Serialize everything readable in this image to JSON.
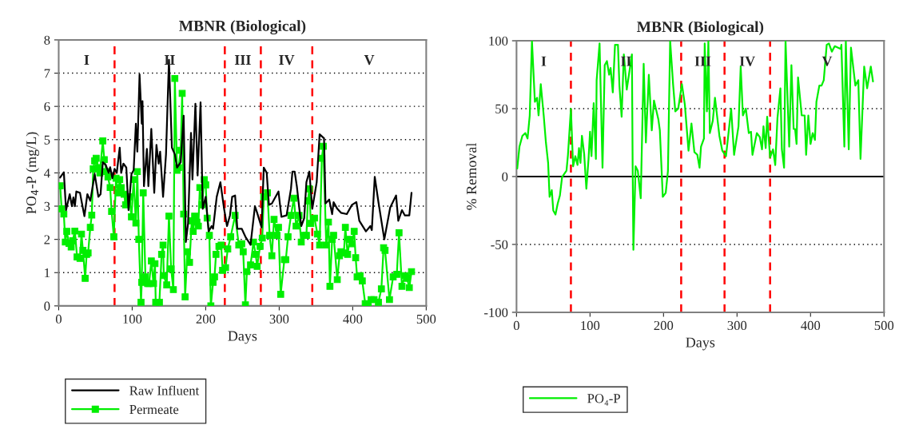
{
  "chart_data": [
    {
      "type": "line",
      "title": "MBNR (Biological)",
      "xlabel": "Days",
      "ylabel": "PO$_{4}$-P (mg/L)",
      "xlim": [
        0,
        500
      ],
      "xticks": [
        0,
        100,
        200,
        300,
        400,
        500
      ],
      "ylim": [
        0,
        8
      ],
      "yticks": [
        0,
        1,
        2,
        3,
        4,
        5,
        6,
        7,
        8
      ],
      "grid": "y",
      "legend": "bottom",
      "series": [
        {
          "name": "Raw Influent",
          "color": "#000000",
          "marker": "none",
          "line_style": "solid",
          "x": [
            2,
            7,
            10,
            15,
            18,
            20,
            22,
            24,
            29,
            31,
            35,
            39,
            43,
            49,
            54,
            57,
            60,
            64,
            68,
            70,
            73,
            76,
            79,
            83,
            85,
            88,
            92,
            95,
            99,
            102,
            105,
            107,
            110,
            113,
            114,
            116,
            120,
            122,
            126,
            130,
            133,
            136,
            138,
            142,
            146,
            150,
            154,
            158,
            161,
            166,
            170,
            173,
            176,
            180,
            182,
            186,
            189,
            193,
            196,
            200,
            204,
            208,
            210,
            215,
            220,
            225,
            229,
            233,
            236,
            240,
            243,
            249,
            254,
            261,
            267,
            270,
            276,
            279,
            283,
            286,
            290,
            299,
            303,
            310,
            316,
            318,
            321,
            324,
            330,
            334,
            337,
            341,
            345,
            351,
            355,
            361,
            363,
            368,
            372,
            374,
            379,
            384,
            392,
            399,
            405,
            409,
            418,
            424,
            426,
            430,
            435,
            443,
            451,
            459,
            462,
            467,
            471,
            477,
            480
          ],
          "values": [
            3.86,
            4.02,
            2.88,
            3.36,
            3.0,
            3.26,
            3.0,
            3.44,
            3.4,
            3.16,
            2.7,
            3.36,
            3.16,
            3.96,
            3.28,
            3.36,
            4.32,
            4.24,
            4.0,
            4.17,
            3.84,
            4.12,
            4.0,
            4.76,
            4.0,
            4.28,
            4.16,
            2.88,
            3.96,
            4.08,
            5.48,
            4.64,
            6.96,
            5.48,
            6.16,
            3.6,
            4.72,
            3.6,
            5.32,
            3.4,
            4.84,
            4.28,
            4.64,
            3.28,
            4.56,
            7.4,
            4.76,
            4.56,
            4.16,
            4.32,
            5.72,
            1.92,
            2.48,
            5.2,
            3.8,
            6.08,
            3.92,
            6.12,
            2.92,
            3.28,
            2.24,
            2.4,
            2.32,
            3.28,
            3.72,
            2.92,
            2.4,
            2.72,
            3.28,
            3.32,
            2.32,
            2.32,
            2.08,
            1.84,
            3.0,
            2.8,
            2.36,
            4.16,
            4.0,
            3.04,
            3.08,
            3.44,
            2.68,
            2.72,
            3.52,
            4.04,
            4.04,
            3.6,
            2.4,
            2.64,
            3.72,
            4.04,
            2.92,
            3.72,
            5.16,
            5.04,
            3.08,
            3.2,
            2.76,
            3.12,
            2.92,
            2.8,
            2.76,
            3.04,
            3.12,
            2.56,
            2.24,
            2.4,
            2.28,
            3.88,
            3.12,
            2.0,
            2.96,
            3.32,
            2.56,
            2.88,
            2.72,
            2.72,
            3.4
          ]
        },
        {
          "name": "Permeate",
          "color": "#00ee00",
          "marker": "square",
          "line_style": "solid",
          "x": [
            2,
            4,
            7,
            9,
            11,
            14,
            17,
            19,
            22,
            25,
            29,
            31,
            33,
            36,
            38,
            40,
            43,
            45,
            47,
            49,
            51,
            54,
            56,
            60,
            62,
            65,
            67,
            70,
            72,
            75,
            78,
            81,
            83,
            85,
            89,
            91,
            94,
            96,
            99,
            102,
            105,
            107,
            109,
            112,
            113,
            115,
            118,
            121,
            123,
            126,
            129,
            131,
            132,
            137,
            140,
            142,
            143,
            147,
            150,
            153,
            156,
            158,
            161,
            163,
            166,
            168,
            170,
            172,
            175,
            178,
            181,
            183,
            185,
            188,
            190,
            192,
            195,
            198,
            200,
            202,
            205,
            207,
            210,
            212,
            214,
            218,
            221,
            223,
            227,
            230,
            234,
            240,
            245,
            249,
            251,
            254,
            256,
            261,
            265,
            268,
            270,
            274,
            277,
            279,
            284,
            287,
            290,
            293,
            297,
            299,
            302,
            307,
            309,
            312,
            316,
            320,
            323,
            327,
            330,
            334,
            337,
            339,
            341,
            343,
            348,
            352,
            355,
            358,
            360,
            364,
            367,
            369,
            372,
            374,
            379,
            382,
            384,
            388,
            390,
            393,
            396,
            399,
            402,
            404,
            406,
            410,
            413,
            417,
            421,
            425,
            429,
            435,
            439,
            442,
            444,
            450,
            455,
            460,
            463,
            467,
            471,
            474,
            477,
            480
          ],
          "values": [
            3.61,
            2.92,
            2.76,
            1.92,
            2.24,
            1.88,
            1.77,
            1.96,
            2.25,
            1.47,
            1.43,
            2.16,
            1.67,
            0.83,
            1.55,
            1.59,
            2.36,
            2.73,
            4.12,
            4.36,
            4.44,
            4.16,
            4.0,
            4.96,
            4.4,
            4.04,
            3.88,
            3.56,
            2.84,
            2.08,
            3.84,
            3.4,
            3.8,
            3.56,
            3.36,
            3.04,
            3.16,
            3.28,
            2.68,
            3.8,
            2.49,
            4.04,
            2.0,
            0.11,
            0.71,
            3.4,
            0.87,
            0.67,
            0.67,
            1.35,
            0.67,
            1.27,
            0.11,
            0.11,
            1.55,
            1.83,
            0.91,
            0.63,
            2.7,
            1.11,
            0.49,
            6.84,
            4.08,
            4.16,
            4.68,
            6.39,
            2.76,
            0.27,
            1.63,
            1.31,
            2.56,
            2.24,
            2.7,
            2.52,
            2.4,
            3.56,
            3.04,
            3.8,
            3.64,
            2.64,
            2.12,
            0.0,
            0.71,
            0.87,
            1.55,
            1.79,
            1.83,
            1.07,
            1.15,
            1.71,
            2.08,
            2.72,
            1.83,
            1.87,
            1.63,
            0.03,
            1.03,
            1.23,
            1.92,
            1.55,
            1.19,
            1.79,
            2.04,
            3.28,
            3.4,
            2.12,
            1.51,
            2.6,
            2.12,
            2.36,
            0.35,
            1.39,
            1.39,
            2.08,
            2.72,
            3.24,
            2.4,
            2.72,
            1.92,
            2.12,
            2.12,
            3.16,
            3.52,
            2.48,
            2.64,
            2.16,
            1.83,
            4.44,
            4.8,
            1.83,
            2.52,
            0.59,
            2.0,
            2.12,
            0.79,
            1.51,
            1.63,
            1.59,
            2.36,
            1.55,
            2.0,
            1.87,
            2.24,
            1.45,
            0.87,
            0.91,
            0.75,
            0.07,
            0.03,
            0.19,
            0.19,
            0.11,
            0.51,
            1.75,
            1.67,
            0.19,
            0.87,
            0.95,
            2.2,
            0.59,
            0.91,
            0.83,
            0.55,
            1.03
          ]
        }
      ],
      "ref_lines": [
        {
          "axis": "x",
          "value": 76,
          "color": "#ff0000",
          "line_style": "dashed"
        },
        {
          "axis": "x",
          "value": 226,
          "color": "#ff0000",
          "line_style": "dashed"
        },
        {
          "axis": "x",
          "value": 275,
          "color": "#ff0000",
          "line_style": "dashed"
        },
        {
          "axis": "x",
          "value": 345,
          "color": "#ff0000",
          "line_style": "dashed"
        }
      ],
      "annotations": [
        "I",
        "II",
        "III",
        "IV",
        "V"
      ]
    },
    {
      "type": "line",
      "title": "MBNR (Biological)",
      "xlabel": "Days",
      "ylabel": "% Removal",
      "xlim": [
        0,
        500
      ],
      "xticks": [
        0,
        100,
        200,
        300,
        400,
        500
      ],
      "ylim": [
        -100,
        100
      ],
      "yticks": [
        -100,
        -50,
        0,
        50,
        100
      ],
      "grid": "y",
      "legend": "bottom",
      "series": [
        {
          "name": "PO₄-P",
          "color": "#00ee00",
          "marker": "none",
          "line_style": "solid",
          "x": [
            1,
            4,
            8,
            12,
            15,
            18,
            21,
            25,
            28,
            30,
            33,
            37,
            40,
            43,
            45,
            48,
            50,
            53,
            56,
            59,
            62,
            68,
            70,
            74,
            77,
            80,
            83,
            85,
            87,
            89,
            92,
            95,
            98,
            100,
            102,
            105,
            108,
            109,
            113,
            117,
            120,
            123,
            126,
            128,
            131,
            134,
            138,
            140,
            143,
            146,
            150,
            157,
            158,
            159,
            162,
            165,
            169,
            173,
            176,
            180,
            184,
            187,
            193,
            195,
            199,
            203,
            206,
            209,
            213,
            216,
            220,
            225,
            229,
            234,
            238,
            242,
            246,
            249,
            251,
            255,
            256,
            259,
            261,
            263,
            267,
            270,
            276,
            280,
            285,
            292,
            296,
            302,
            305,
            308,
            312,
            316,
            319,
            321,
            327,
            331,
            334,
            336,
            339,
            341,
            345,
            349,
            352,
            355,
            359,
            361,
            364,
            366,
            371,
            374,
            377,
            379,
            381,
            383,
            388,
            392,
            394,
            397,
            400,
            403,
            406,
            408,
            412,
            415,
            418,
            422,
            425,
            429,
            433,
            437,
            441,
            442,
            446,
            448,
            452,
            455,
            461,
            465,
            468,
            473,
            477,
            482,
            485
          ],
          "values": [
            6,
            22,
            30,
            32,
            28,
            45,
            100,
            55,
            58,
            45,
            68,
            45,
            25,
            10,
            -15,
            -10,
            -25,
            -28,
            -20,
            -14,
            -0.4,
            4.3,
            16,
            50,
            7.5,
            15,
            8.6,
            21,
            10,
            30,
            17,
            -9,
            13,
            33,
            15,
            54,
            13,
            71,
            98,
            6.5,
            82,
            85,
            75,
            80,
            62,
            97,
            97,
            67,
            44,
            90,
            64,
            90,
            7.5,
            -54,
            7.5,
            4.3,
            -16,
            83,
            25,
            75,
            34,
            56,
            42,
            34,
            -15,
            -12,
            4,
            100,
            68,
            48,
            50,
            68,
            53,
            19,
            39,
            18,
            16,
            6.5,
            22,
            28,
            98,
            48,
            100,
            32,
            41,
            58,
            30,
            19,
            15,
            50,
            16,
            37,
            81,
            45,
            50,
            32,
            33,
            16,
            32,
            29,
            20,
            37,
            21,
            44,
            14,
            20,
            8.5,
            43,
            65,
            20,
            6.5,
            100,
            22,
            82,
            35,
            35,
            24,
            73,
            45,
            45,
            16,
            45,
            24,
            32,
            27,
            55,
            67,
            67,
            71,
            97,
            98,
            92,
            96,
            95,
            94,
            97,
            22,
            100,
            20,
            95,
            67,
            71,
            13,
            81,
            65,
            81,
            70
          ]
        }
      ],
      "ref_lines": [
        {
          "axis": "y",
          "value": 0,
          "color": "#000000",
          "line_style": "solid"
        },
        {
          "axis": "x",
          "value": 74,
          "color": "#ff0000",
          "line_style": "dashed"
        },
        {
          "axis": "x",
          "value": 224,
          "color": "#ff0000",
          "line_style": "dashed"
        },
        {
          "axis": "x",
          "value": 283,
          "color": "#ff0000",
          "line_style": "dashed"
        },
        {
          "axis": "x",
          "value": 345,
          "color": "#ff0000",
          "line_style": "dashed"
        }
      ],
      "annotations": [
        "I",
        "II",
        "III",
        "IV",
        "V"
      ]
    }
  ]
}
